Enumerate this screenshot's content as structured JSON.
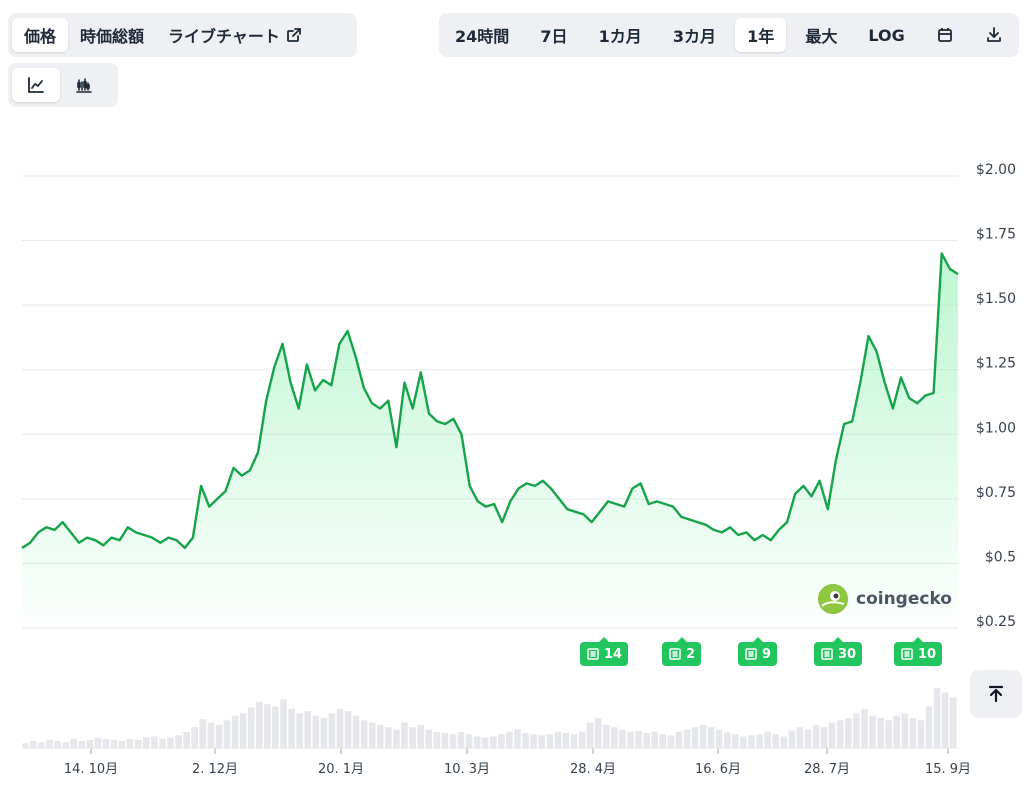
{
  "tabs": {
    "price": "価格",
    "market_cap": "時価総額",
    "live_chart": "ライブチャート"
  },
  "range": {
    "h24": "24時間",
    "d7": "7日",
    "m1": "1カ月",
    "m3": "3カ月",
    "y1": "1年",
    "max": "最大",
    "log": "LOG",
    "selected": "1年"
  },
  "icons": {
    "external": "external-link-icon",
    "calendar": "calendar-icon",
    "download": "download-icon",
    "line": "line-chart-icon",
    "candle": "candlestick-icon",
    "news": "newspaper-icon",
    "scroll_top": "arrow-up-to-top-icon"
  },
  "news_markers": [
    "14",
    "2",
    "9",
    "30",
    "10"
  ],
  "watermark": "coingecko",
  "colors": {
    "line": "#16a34a",
    "accent_badge": "#22c55e",
    "area_top": "#86efac"
  },
  "chart_data": {
    "type": "area",
    "x_tick_labels": [
      "14. 10月",
      "2. 12月",
      "20. 1月",
      "10. 3月",
      "28. 4月",
      "16. 6月",
      "28. 7月",
      "15. 9月"
    ],
    "y_tick_labels": [
      "$2.00",
      "$1.75",
      "$1.50",
      "$1.25",
      "$1.00",
      "$0.75",
      "$0.5",
      "$0.25"
    ],
    "ylim": [
      0.25,
      2.0
    ],
    "grid": true,
    "values": [
      0.56,
      0.58,
      0.62,
      0.64,
      0.63,
      0.66,
      0.62,
      0.58,
      0.6,
      0.59,
      0.57,
      0.6,
      0.59,
      0.64,
      0.62,
      0.61,
      0.6,
      0.58,
      0.6,
      0.59,
      0.56,
      0.6,
      0.8,
      0.72,
      0.75,
      0.78,
      0.87,
      0.84,
      0.86,
      0.93,
      1.13,
      1.26,
      1.35,
      1.2,
      1.1,
      1.27,
      1.17,
      1.21,
      1.19,
      1.35,
      1.4,
      1.3,
      1.18,
      1.12,
      1.1,
      1.13,
      0.95,
      1.2,
      1.1,
      1.24,
      1.08,
      1.05,
      1.04,
      1.06,
      1.0,
      0.8,
      0.74,
      0.72,
      0.73,
      0.66,
      0.74,
      0.79,
      0.81,
      0.8,
      0.82,
      0.79,
      0.75,
      0.71,
      0.7,
      0.69,
      0.66,
      0.7,
      0.74,
      0.73,
      0.72,
      0.79,
      0.81,
      0.73,
      0.74,
      0.73,
      0.72,
      0.68,
      0.67,
      0.66,
      0.65,
      0.63,
      0.62,
      0.64,
      0.61,
      0.62,
      0.59,
      0.61,
      0.59,
      0.63,
      0.66,
      0.77,
      0.8,
      0.76,
      0.82,
      0.71,
      0.9,
      1.04,
      1.05,
      1.2,
      1.38,
      1.32,
      1.2,
      1.1,
      1.22,
      1.14,
      1.12,
      1.15,
      1.16,
      1.7,
      1.64,
      1.62
    ],
    "volume": [
      4,
      6,
      5,
      7,
      6,
      5,
      8,
      6,
      7,
      9,
      8,
      7,
      6,
      8,
      7,
      9,
      10,
      8,
      9,
      11,
      14,
      18,
      25,
      22,
      20,
      24,
      28,
      30,
      35,
      40,
      38,
      36,
      42,
      34,
      30,
      32,
      28,
      26,
      30,
      34,
      32,
      28,
      24,
      22,
      20,
      18,
      16,
      22,
      18,
      20,
      16,
      14,
      13,
      12,
      14,
      12,
      10,
      9,
      10,
      12,
      14,
      16,
      13,
      12,
      11,
      12,
      14,
      13,
      12,
      14,
      22,
      26,
      20,
      18,
      16,
      14,
      15,
      13,
      14,
      12,
      11,
      14,
      16,
      18,
      20,
      18,
      16,
      14,
      12,
      10,
      11,
      12,
      14,
      12,
      10,
      15,
      18,
      16,
      20,
      18,
      22,
      24,
      26,
      30,
      34,
      28,
      26,
      24,
      28,
      30,
      26,
      24,
      36,
      52,
      48,
      44
    ]
  }
}
